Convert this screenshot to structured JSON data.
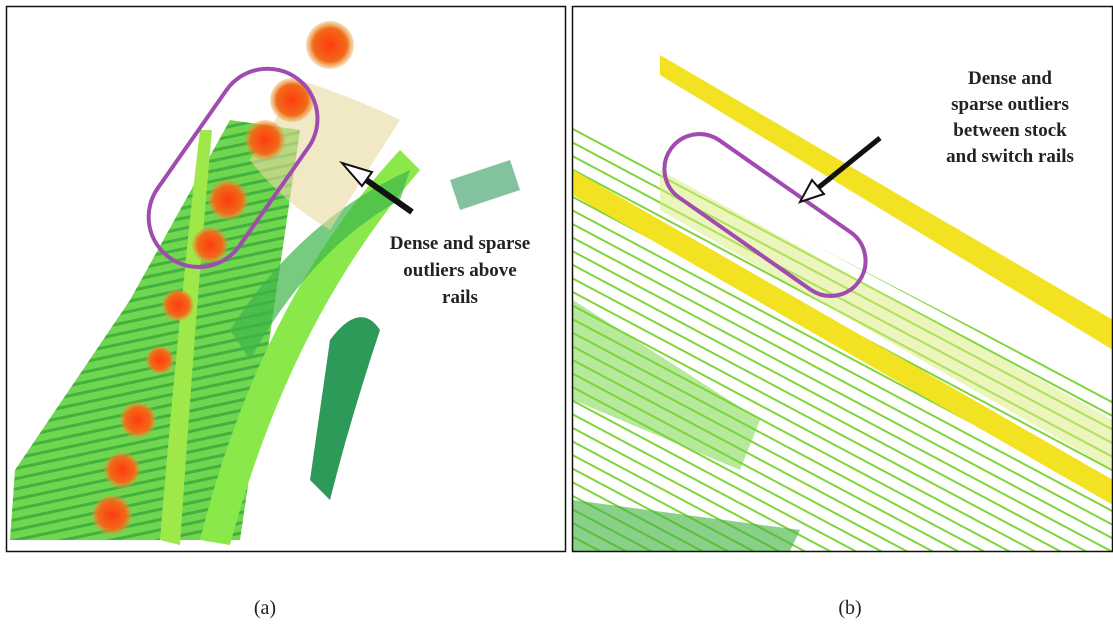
{
  "panels": [
    {
      "annotation": [
        "Dense and sparse",
        "outliers above",
        "rails"
      ],
      "caption": "(a)"
    },
    {
      "annotation": [
        "Dense and",
        "sparse outliers",
        "between stock",
        "and switch rails"
      ],
      "caption": "(b)"
    }
  ]
}
